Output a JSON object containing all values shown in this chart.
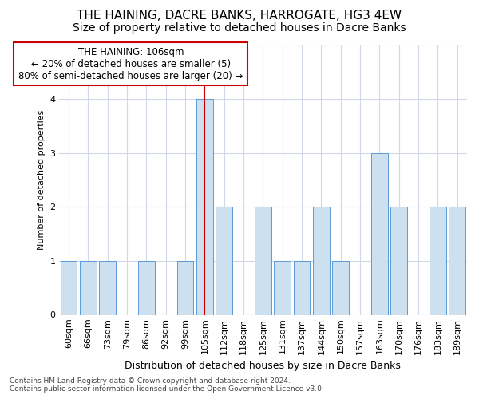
{
  "title": "THE HAINING, DACRE BANKS, HARROGATE, HG3 4EW",
  "subtitle": "Size of property relative to detached houses in Dacre Banks",
  "xlabel": "Distribution of detached houses by size in Dacre Banks",
  "ylabel": "Number of detached properties",
  "categories": [
    "60sqm",
    "66sqm",
    "73sqm",
    "79sqm",
    "86sqm",
    "92sqm",
    "99sqm",
    "105sqm",
    "112sqm",
    "118sqm",
    "125sqm",
    "131sqm",
    "137sqm",
    "144sqm",
    "150sqm",
    "157sqm",
    "163sqm",
    "170sqm",
    "176sqm",
    "183sqm",
    "189sqm"
  ],
  "values": [
    1,
    1,
    1,
    0,
    1,
    0,
    1,
    4,
    2,
    0,
    2,
    1,
    1,
    2,
    1,
    0,
    3,
    2,
    0,
    2,
    2
  ],
  "bar_color": "#cce0f0",
  "bar_edge_color": "#5b9bd5",
  "highlight_index": 7,
  "highlight_line_color": "#cc0000",
  "ylim": [
    0,
    5
  ],
  "yticks": [
    0,
    1,
    2,
    3,
    4,
    5
  ],
  "annotation_text": "THE HAINING: 106sqm\n← 20% of detached houses are smaller (5)\n80% of semi-detached houses are larger (20) →",
  "annotation_box_color": "#ffffff",
  "annotation_border_color": "#cc0000",
  "footer": "Contains HM Land Registry data © Crown copyright and database right 2024.\nContains public sector information licensed under the Open Government Licence v3.0.",
  "background_color": "#ffffff",
  "grid_color": "#d0d8e8",
  "title_fontsize": 11,
  "subtitle_fontsize": 10,
  "xlabel_fontsize": 9,
  "ylabel_fontsize": 8,
  "tick_fontsize": 8,
  "footer_fontsize": 6.5,
  "ann_fontsize": 8.5
}
